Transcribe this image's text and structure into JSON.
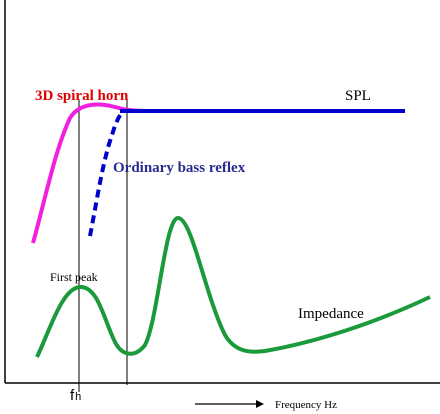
{
  "labels": {
    "horn": "3D spiral horn",
    "spl": "SPL",
    "reflex": "Ordinary bass reflex",
    "first_peak": "First peak",
    "impedance": "Impedance",
    "fh_main": "f",
    "fh_sub": "h",
    "x_axis": "Frequency Hz"
  }
}
